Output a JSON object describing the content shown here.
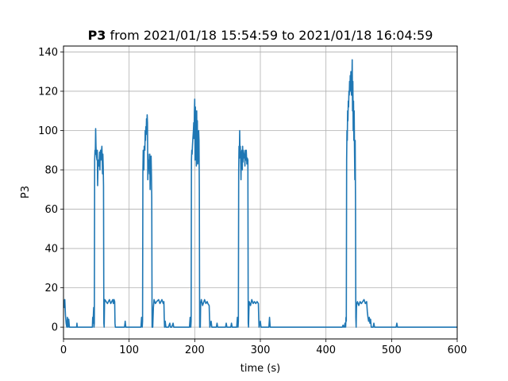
{
  "chart_data": {
    "type": "line",
    "title_bold": "P3",
    "title_rest": " from 2021/01/18 15:54:59 to 2021/01/18 16:04:59",
    "xlabel": "time (s)",
    "ylabel": "P3",
    "xlim": [
      0,
      600
    ],
    "ylim": [
      -6,
      143
    ],
    "xticks": [
      0,
      100,
      200,
      300,
      400,
      500,
      600
    ],
    "yticks": [
      0,
      20,
      40,
      60,
      80,
      100,
      120,
      140
    ],
    "grid": true,
    "line_color": "#1f77b4",
    "series": [
      {
        "values": [
          [
            0,
            14
          ],
          [
            1,
            10
          ],
          [
            2,
            14
          ],
          [
            3,
            6
          ],
          [
            4,
            2
          ],
          [
            5,
            0
          ],
          [
            6,
            5
          ],
          [
            7,
            0
          ],
          [
            8,
            4
          ],
          [
            9,
            0
          ],
          [
            10,
            0
          ],
          [
            20,
            0
          ],
          [
            20.5,
            2
          ],
          [
            21,
            0
          ],
          [
            26,
            0
          ],
          [
            30,
            0
          ],
          [
            40,
            0
          ],
          [
            44,
            0
          ],
          [
            44.5,
            5
          ],
          [
            45,
            2
          ],
          [
            46,
            10
          ],
          [
            46.5,
            0
          ],
          [
            47,
            2
          ],
          [
            47.5,
            85
          ],
          [
            48,
            90
          ],
          [
            48.5,
            88
          ],
          [
            49,
            101
          ],
          [
            49.5,
            92
          ],
          [
            50,
            88
          ],
          [
            51,
            85
          ],
          [
            51.5,
            90
          ],
          [
            52,
            72
          ],
          [
            52.5,
            80
          ],
          [
            53,
            85
          ],
          [
            53.5,
            84
          ],
          [
            54,
            82
          ],
          [
            55,
            89
          ],
          [
            55.5,
            80
          ],
          [
            56,
            88
          ],
          [
            56.5,
            90
          ],
          [
            57,
            85
          ],
          [
            58,
            90
          ],
          [
            58.5,
            92
          ],
          [
            59,
            86
          ],
          [
            59.5,
            78
          ],
          [
            60,
            88
          ],
          [
            60.5,
            82
          ],
          [
            61,
            72
          ],
          [
            61.5,
            2
          ],
          [
            62,
            0
          ],
          [
            62.5,
            12
          ],
          [
            63,
            14
          ],
          [
            65,
            13
          ],
          [
            67,
            12
          ],
          [
            70,
            14
          ],
          [
            72,
            12
          ],
          [
            75,
            14
          ],
          [
            76,
            12
          ],
          [
            77,
            14
          ],
          [
            78,
            13
          ],
          [
            78.5,
            2
          ],
          [
            79,
            0
          ],
          [
            85,
            0
          ],
          [
            90,
            0
          ],
          [
            93,
            0
          ],
          [
            94,
            3
          ],
          [
            95,
            0
          ],
          [
            100,
            0
          ],
          [
            110,
            0
          ],
          [
            118,
            0
          ],
          [
            119,
            5
          ],
          [
            120,
            0
          ],
          [
            120.5,
            3
          ],
          [
            121,
            80
          ],
          [
            121.5,
            90
          ],
          [
            122,
            88
          ],
          [
            122.5,
            80
          ],
          [
            123,
            92
          ],
          [
            124,
            90
          ],
          [
            124.5,
            100
          ],
          [
            125,
            95
          ],
          [
            125.5,
            102
          ],
          [
            126,
            98
          ],
          [
            126.5,
            106
          ],
          [
            127,
            100
          ],
          [
            127.5,
            108
          ],
          [
            128,
            104
          ],
          [
            128.5,
            75
          ],
          [
            129,
            88
          ],
          [
            129.5,
            80
          ],
          [
            130,
            85
          ],
          [
            131,
            78
          ],
          [
            131.5,
            88
          ],
          [
            132,
            70
          ],
          [
            132.5,
            85
          ],
          [
            133,
            80
          ],
          [
            133.5,
            87
          ],
          [
            134,
            78
          ],
          [
            134.5,
            66
          ],
          [
            135,
            0
          ],
          [
            135.5,
            5
          ],
          [
            136,
            0
          ],
          [
            137,
            10
          ],
          [
            138,
            14
          ],
          [
            140,
            12
          ],
          [
            142,
            13
          ],
          [
            145,
            14
          ],
          [
            147,
            12
          ],
          [
            150,
            14
          ],
          [
            152,
            12
          ],
          [
            153,
            13
          ],
          [
            153.5,
            5
          ],
          [
            154,
            0
          ],
          [
            155,
            3
          ],
          [
            156,
            0
          ],
          [
            160,
            0
          ],
          [
            162,
            2
          ],
          [
            163,
            0
          ],
          [
            165,
            0
          ],
          [
            167,
            2
          ],
          [
            168,
            0
          ],
          [
            170,
            0
          ],
          [
            180,
            0
          ],
          [
            192,
            0
          ],
          [
            193,
            5
          ],
          [
            194,
            0
          ],
          [
            194.5,
            3
          ],
          [
            195,
            85
          ],
          [
            195.5,
            90
          ],
          [
            196,
            88
          ],
          [
            196.5,
            92
          ],
          [
            197,
            95
          ],
          [
            198,
            100
          ],
          [
            198.5,
            104
          ],
          [
            199,
            96
          ],
          [
            199.5,
            110
          ],
          [
            200,
            116
          ],
          [
            200.5,
            85
          ],
          [
            201,
            112
          ],
          [
            201.5,
            90
          ],
          [
            202,
            104
          ],
          [
            202.5,
            82
          ],
          [
            203,
            110
          ],
          [
            203.5,
            88
          ],
          [
            204,
            105
          ],
          [
            204.5,
            83
          ],
          [
            205,
            85
          ],
          [
            206,
            100
          ],
          [
            206.5,
            95
          ],
          [
            207,
            70
          ],
          [
            207.5,
            0
          ],
          [
            208,
            5
          ],
          [
            208.5,
            0
          ],
          [
            209,
            12
          ],
          [
            210,
            14
          ],
          [
            212,
            11
          ],
          [
            213,
            12
          ],
          [
            215,
            14
          ],
          [
            217,
            12
          ],
          [
            219,
            13
          ],
          [
            220,
            12
          ],
          [
            222,
            11
          ],
          [
            222.5,
            5
          ],
          [
            223,
            0
          ],
          [
            225,
            3
          ],
          [
            226,
            0
          ],
          [
            230,
            0
          ],
          [
            233,
            0
          ],
          [
            234,
            2
          ],
          [
            235,
            0
          ],
          [
            240,
            0
          ],
          [
            247,
            0
          ],
          [
            248,
            2
          ],
          [
            249,
            0
          ],
          [
            255,
            0
          ],
          [
            256,
            2
          ],
          [
            257,
            0
          ],
          [
            260,
            0
          ],
          [
            264,
            0
          ],
          [
            265,
            5
          ],
          [
            266,
            0
          ],
          [
            266.5,
            3
          ],
          [
            267,
            80
          ],
          [
            267.5,
            92
          ],
          [
            268,
            86
          ],
          [
            268.5,
            100
          ],
          [
            269,
            88
          ],
          [
            269.5,
            92
          ],
          [
            270,
            85
          ],
          [
            270.5,
            75
          ],
          [
            271,
            88
          ],
          [
            272,
            90
          ],
          [
            272.5,
            80
          ],
          [
            273,
            92
          ],
          [
            273.5,
            84
          ],
          [
            274,
            90
          ],
          [
            275,
            88
          ],
          [
            275.5,
            86
          ],
          [
            276,
            87
          ],
          [
            276.5,
            82
          ],
          [
            277,
            90
          ],
          [
            278,
            85
          ],
          [
            278.5,
            90
          ],
          [
            279,
            86
          ],
          [
            279.5,
            83
          ],
          [
            280,
            86
          ],
          [
            281,
            85
          ],
          [
            281.5,
            2
          ],
          [
            282,
            0
          ],
          [
            282.5,
            8
          ],
          [
            283,
            13
          ],
          [
            285,
            11
          ],
          [
            287,
            14
          ],
          [
            289,
            12
          ],
          [
            291,
            13
          ],
          [
            293,
            12
          ],
          [
            295,
            13
          ],
          [
            297,
            12
          ],
          [
            297.5,
            5
          ],
          [
            298,
            0
          ],
          [
            300,
            3
          ],
          [
            301,
            0
          ],
          [
            305,
            0
          ],
          [
            310,
            0
          ],
          [
            313,
            0
          ],
          [
            314,
            5
          ],
          [
            315,
            0
          ],
          [
            320,
            0
          ],
          [
            330,
            0
          ],
          [
            350,
            0
          ],
          [
            380,
            0
          ],
          [
            400,
            0
          ],
          [
            420,
            0
          ],
          [
            425,
            0
          ],
          [
            426,
            1
          ],
          [
            427,
            0
          ],
          [
            428,
            0
          ],
          [
            429,
            2
          ],
          [
            430,
            0
          ],
          [
            430.5,
            5
          ],
          [
            431,
            3
          ],
          [
            431.5,
            85
          ],
          [
            432,
            100
          ],
          [
            432.5,
            95
          ],
          [
            433,
            110
          ],
          [
            433.5,
            105
          ],
          [
            434,
            115
          ],
          [
            434.5,
            112
          ],
          [
            435,
            120
          ],
          [
            435.5,
            118
          ],
          [
            436,
            125
          ],
          [
            436.5,
            120
          ],
          [
            437,
            128
          ],
          [
            437.5,
            122
          ],
          [
            438,
            130
          ],
          [
            438.5,
            120
          ],
          [
            439,
            118
          ],
          [
            439.5,
            125
          ],
          [
            440,
            136
          ],
          [
            440.5,
            110
          ],
          [
            441,
            125
          ],
          [
            441.5,
            100
          ],
          [
            442,
            115
          ],
          [
            442.5,
            95
          ],
          [
            443,
            110
          ],
          [
            443.5,
            90
          ],
          [
            444,
            75
          ],
          [
            444.5,
            95
          ],
          [
            445,
            65
          ],
          [
            445.5,
            5
          ],
          [
            446,
            0
          ],
          [
            446.5,
            10
          ],
          [
            447,
            12
          ],
          [
            448,
            13
          ],
          [
            450,
            11
          ],
          [
            452,
            13
          ],
          [
            454,
            12
          ],
          [
            456,
            13
          ],
          [
            458,
            14
          ],
          [
            460,
            12
          ],
          [
            462,
            13
          ],
          [
            463,
            8
          ],
          [
            464,
            5
          ],
          [
            465,
            3
          ],
          [
            466,
            5
          ],
          [
            467,
            2
          ],
          [
            468,
            4
          ],
          [
            469,
            0
          ],
          [
            470,
            0
          ],
          [
            472,
            0
          ],
          [
            473,
            2
          ],
          [
            474,
            0
          ],
          [
            475,
            0
          ],
          [
            480,
            0
          ],
          [
            490,
            0
          ],
          [
            500,
            0
          ],
          [
            507,
            0
          ],
          [
            508,
            2
          ],
          [
            509,
            0
          ],
          [
            520,
            0
          ],
          [
            550,
            0
          ],
          [
            580,
            0
          ],
          [
            600,
            0
          ]
        ]
      }
    ]
  }
}
